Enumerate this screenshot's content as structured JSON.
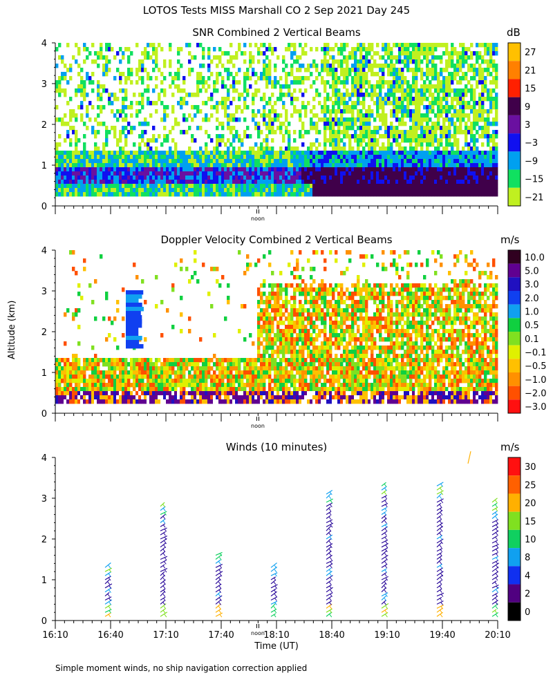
{
  "figure_title": "LOTOS Tests MISS Marshall CO   2 Sep 2021 Day 245",
  "y_axis_label": "Altitude (km)",
  "x_axis_label": "Time (UT)",
  "noon_label": "noon",
  "footer_note": "Simple moment winds, no ship navigation correction applied",
  "chart_data": [
    {
      "type": "heatmap",
      "title": "SNR Combined 2 Vertical Beams",
      "unit": "dB",
      "ylim": [
        0,
        4
      ],
      "yticks": [
        "0",
        "1",
        "2",
        "3",
        "4"
      ],
      "colorbar_labels": [
        "27",
        "21",
        "15",
        "9",
        "3",
        "−3",
        "−9",
        "−15",
        "−21"
      ],
      "colorbar_colors": [
        "#ffc000",
        "#ff8000",
        "#ff2000",
        "#40004a",
        "#6a10a0",
        "#1010f0",
        "#00a0f0",
        "#10e060",
        "#c0f020"
      ],
      "time_range": [
        "16:10",
        "20:10"
      ]
    },
    {
      "type": "heatmap",
      "title": "Doppler Velocity Combined 2 Vertical Beams",
      "unit": "m/s",
      "ylim": [
        0,
        4
      ],
      "yticks": [
        "0",
        "1",
        "2",
        "3",
        "4"
      ],
      "colorbar_labels": [
        "10.0",
        "5.0",
        "3.0",
        "2.0",
        "1.0",
        "0.5",
        "0.1",
        "−0.1",
        "−0.5",
        "−1.0",
        "−2.0",
        "−3.0"
      ],
      "colorbar_colors": [
        "#300020",
        "#600090",
        "#2010c0",
        "#1040f0",
        "#10a0f0",
        "#10d040",
        "#80e020",
        "#e0f000",
        "#ffc000",
        "#ff9000",
        "#ff5000",
        "#ff1010"
      ],
      "time_range": [
        "16:10",
        "20:10"
      ]
    },
    {
      "type": "scatter",
      "title": "Winds (10 minutes)",
      "unit": "m/s",
      "ylim": [
        0,
        4
      ],
      "yticks": [
        "0",
        "1",
        "2",
        "3",
        "4"
      ],
      "x_ticks": [
        "16:10",
        "16:40",
        "17:10",
        "17:40",
        "18:10",
        "18:40",
        "19:10",
        "19:40",
        "20:10"
      ],
      "colorbar_labels": [
        "30",
        "25",
        "20",
        "15",
        "10",
        "8",
        "4",
        "2",
        "0"
      ],
      "colorbar_colors": [
        "#ff1010",
        "#ff6000",
        "#ffb000",
        "#80e020",
        "#10d060",
        "#10a0f0",
        "#1030f0",
        "#500080",
        "#000000"
      ],
      "wind_profile_times_min": [
        27,
        57,
        87,
        117,
        147,
        177,
        207,
        237
      ],
      "wind_profile_top_km": [
        1.3,
        2.9,
        1.7,
        1.4,
        3.2,
        3.4,
        3.4,
        3.0
      ]
    }
  ]
}
